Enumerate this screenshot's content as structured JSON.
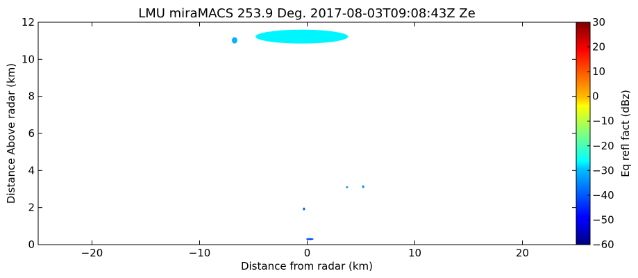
{
  "chart_data": {
    "type": "heatmap",
    "title": "LMU miraMACS 253.9 Deg. 2017-08-03T09:08:43Z  Ze",
    "xlabel": "Distance from radar (km)",
    "ylabel": "Distance Above radar  (km)",
    "xlim": [
      -25,
      25
    ],
    "ylim": [
      0,
      12
    ],
    "x_ticks": [
      -20,
      -10,
      0,
      10,
      20
    ],
    "x_tick_labels": [
      "−20",
      "−10",
      "0",
      "10",
      "20"
    ],
    "y_ticks": [
      0,
      2,
      4,
      6,
      8,
      10,
      12
    ],
    "y_tick_labels": [
      "0",
      "2",
      "4",
      "6",
      "8",
      "10",
      "12"
    ],
    "grid": false,
    "colorbar": {
      "label": "Eq refl fact (dBz)",
      "range": [
        -60,
        30
      ],
      "ticks": [
        -60,
        -50,
        -40,
        -30,
        -20,
        -10,
        0,
        10,
        20,
        30
      ],
      "tick_labels": [
        "−60",
        "−50",
        "−40",
        "−30",
        "−20",
        "−10",
        "0",
        "10",
        "20",
        "30"
      ],
      "colormap": "jet"
    },
    "regions": [
      {
        "x_range": [
          -7.0,
          -6.5
        ],
        "y_range": [
          10.85,
          11.2
        ],
        "value": -33
      },
      {
        "x_range": [
          -4.8,
          3.8
        ],
        "y_range": [
          10.85,
          11.6
        ],
        "value": -27
      },
      {
        "x_range": [
          3.6,
          3.8
        ],
        "y_range": [
          3.05,
          3.15
        ],
        "value": -36
      },
      {
        "x_range": [
          5.1,
          5.3
        ],
        "y_range": [
          3.05,
          3.2
        ],
        "value": -36
      },
      {
        "x_range": [
          -0.4,
          -0.2
        ],
        "y_range": [
          1.85,
          2.0
        ],
        "value": -40
      },
      {
        "x_range": [
          -0.1,
          0.6
        ],
        "y_range": [
          0.25,
          0.35
        ],
        "value": -42
      }
    ]
  }
}
